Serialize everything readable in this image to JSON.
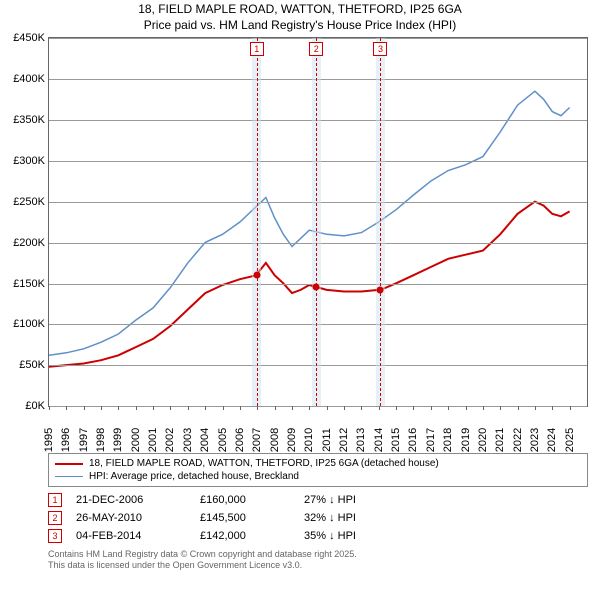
{
  "title1": "18, FIELD MAPLE ROAD, WATTON, THETFORD, IP25 6GA",
  "title2": "Price paid vs. HM Land Registry's House Price Index (HPI)",
  "chart": {
    "type": "line",
    "background_color": "#ffffff",
    "grid_color": "#999999",
    "border_color": "#666666",
    "tick_fontsize": 11,
    "y": {
      "min": 0,
      "max": 450,
      "step": 50,
      "prefix": "£",
      "suffix": "K"
    },
    "x": {
      "years": [
        1995,
        1996,
        1997,
        1998,
        1999,
        2000,
        2001,
        2002,
        2003,
        2004,
        2005,
        2006,
        2007,
        2008,
        2009,
        2010,
        2011,
        2012,
        2013,
        2014,
        2015,
        2016,
        2017,
        2018,
        2019,
        2020,
        2021,
        2022,
        2023,
        2024,
        2025
      ]
    },
    "highlight_bands": [
      {
        "year": 2006.97,
        "width_years": 0.5
      },
      {
        "year": 2010.4,
        "width_years": 0.5
      },
      {
        "year": 2014.1,
        "width_years": 0.5
      }
    ],
    "vlines": [
      {
        "year": 2006.97,
        "label": "1"
      },
      {
        "year": 2010.4,
        "label": "2"
      },
      {
        "year": 2014.1,
        "label": "3"
      }
    ],
    "series": [
      {
        "name": "property",
        "color": "#cc0000",
        "width": 2,
        "points": [
          [
            1995,
            48
          ],
          [
            1996,
            50
          ],
          [
            1997,
            52
          ],
          [
            1998,
            56
          ],
          [
            1999,
            62
          ],
          [
            2000,
            72
          ],
          [
            2001,
            82
          ],
          [
            2002,
            98
          ],
          [
            2003,
            118
          ],
          [
            2004,
            138
          ],
          [
            2005,
            148
          ],
          [
            2006,
            155
          ],
          [
            2006.97,
            160
          ],
          [
            2007,
            162
          ],
          [
            2007.5,
            175
          ],
          [
            2008,
            160
          ],
          [
            2008.5,
            150
          ],
          [
            2009,
            138
          ],
          [
            2009.5,
            142
          ],
          [
            2010,
            148
          ],
          [
            2010.4,
            145.5
          ],
          [
            2011,
            142
          ],
          [
            2012,
            140
          ],
          [
            2013,
            140
          ],
          [
            2014,
            142
          ],
          [
            2014.1,
            142
          ],
          [
            2015,
            150
          ],
          [
            2016,
            160
          ],
          [
            2017,
            170
          ],
          [
            2018,
            180
          ],
          [
            2019,
            185
          ],
          [
            2020,
            190
          ],
          [
            2021,
            210
          ],
          [
            2022,
            235
          ],
          [
            2023,
            250
          ],
          [
            2023.5,
            245
          ],
          [
            2024,
            235
          ],
          [
            2024.5,
            232
          ],
          [
            2025,
            238
          ]
        ]
      },
      {
        "name": "hpi",
        "color": "#6090c8",
        "width": 1.5,
        "points": [
          [
            1995,
            62
          ],
          [
            1996,
            65
          ],
          [
            1997,
            70
          ],
          [
            1998,
            78
          ],
          [
            1999,
            88
          ],
          [
            2000,
            105
          ],
          [
            2001,
            120
          ],
          [
            2002,
            145
          ],
          [
            2003,
            175
          ],
          [
            2004,
            200
          ],
          [
            2005,
            210
          ],
          [
            2006,
            225
          ],
          [
            2007,
            245
          ],
          [
            2007.5,
            255
          ],
          [
            2008,
            230
          ],
          [
            2008.5,
            210
          ],
          [
            2009,
            195
          ],
          [
            2009.5,
            205
          ],
          [
            2010,
            215
          ],
          [
            2011,
            210
          ],
          [
            2012,
            208
          ],
          [
            2013,
            212
          ],
          [
            2014,
            225
          ],
          [
            2015,
            240
          ],
          [
            2016,
            258
          ],
          [
            2017,
            275
          ],
          [
            2018,
            288
          ],
          [
            2019,
            295
          ],
          [
            2020,
            305
          ],
          [
            2021,
            335
          ],
          [
            2022,
            368
          ],
          [
            2023,
            385
          ],
          [
            2023.5,
            375
          ],
          [
            2024,
            360
          ],
          [
            2024.5,
            355
          ],
          [
            2025,
            365
          ]
        ]
      }
    ],
    "dots": [
      {
        "year": 2006.97,
        "value": 160,
        "color": "#cc0000"
      },
      {
        "year": 2010.4,
        "value": 145.5,
        "color": "#cc0000"
      },
      {
        "year": 2014.1,
        "value": 142,
        "color": "#cc0000"
      }
    ],
    "highlight_color": "#d0e0f0",
    "vline_color": "#cc0000"
  },
  "legend": {
    "items": [
      {
        "label": "18, FIELD MAPLE ROAD, WATTON, THETFORD, IP25 6GA (detached house)",
        "color": "#cc0000",
        "width": 2
      },
      {
        "label": "HPI: Average price, detached house, Breckland",
        "color": "#6090c8",
        "width": 1.5
      }
    ]
  },
  "transactions": [
    {
      "n": "1",
      "date": "21-DEC-2006",
      "price": "£160,000",
      "diff": "27% ↓ HPI"
    },
    {
      "n": "2",
      "date": "26-MAY-2010",
      "price": "£145,500",
      "diff": "32% ↓ HPI"
    },
    {
      "n": "3",
      "date": "04-FEB-2014",
      "price": "£142,000",
      "diff": "35% ↓ HPI"
    }
  ],
  "footer1": "Contains HM Land Registry data © Crown copyright and database right 2025.",
  "footer2": "This data is licensed under the Open Government Licence v3.0."
}
